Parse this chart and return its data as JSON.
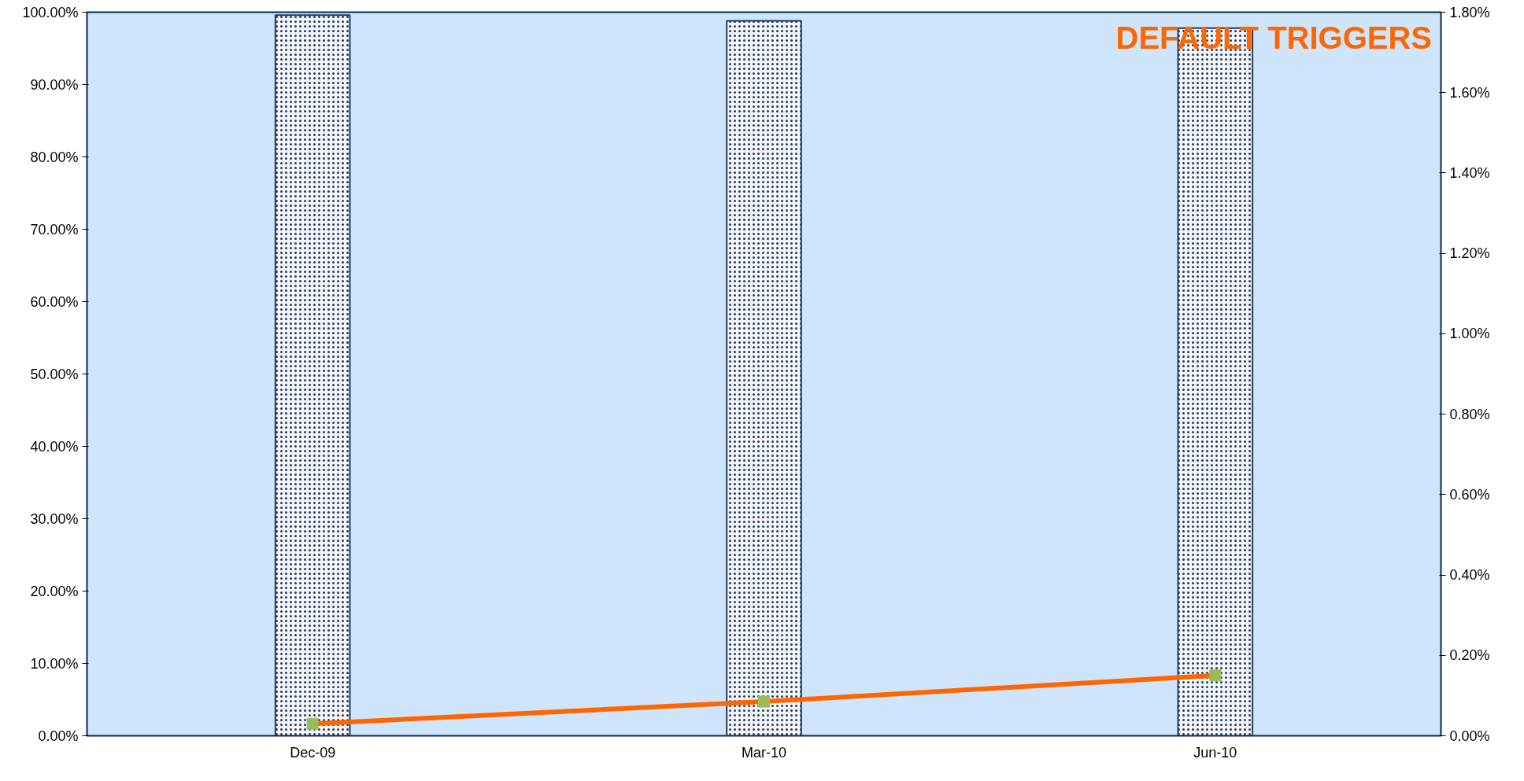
{
  "chart_data": {
    "type": "bar",
    "title": "DEFAULT TRIGGERS",
    "categories": [
      "Dec-09",
      "Mar-10",
      "Jun-10"
    ],
    "series": [
      {
        "color": "#1f3864",
        "values": [
          99.6,
          98.8,
          97.8
        ]
      },
      {
        "type": "line",
        "axis": "y2",
        "color": "#ff6600",
        "marker": "square",
        "values": [
          0.03,
          0.085,
          0.15
        ]
      }
    ],
    "ylim": [
      0,
      100
    ],
    "yticks": [
      {
        "value": 0,
        "label": "0.00%"
      },
      {
        "value": 10,
        "label": "10.00%"
      },
      {
        "value": 20,
        "label": "20.00%"
      },
      {
        "value": 30,
        "label": "30.00%"
      },
      {
        "value": 40,
        "label": "40.00%"
      },
      {
        "value": 50,
        "label": "50.00%"
      },
      {
        "value": 60,
        "label": "60.00%"
      },
      {
        "value": 70,
        "label": "70.00%"
      },
      {
        "value": 80,
        "label": "80.00%"
      },
      {
        "value": 90,
        "label": "90.00%"
      },
      {
        "value": 100,
        "label": "100.00%"
      }
    ],
    "y2lim": [
      0,
      1.8
    ],
    "y2ticks": [
      {
        "value": 0,
        "label": "0.00%"
      },
      {
        "value": 0.2,
        "label": "0.20%"
      },
      {
        "value": 0.4,
        "label": "0.40%"
      },
      {
        "value": 0.6,
        "label": "0.60%"
      },
      {
        "value": 0.8,
        "label": "0.80%"
      },
      {
        "value": 1.0,
        "label": "1.00%"
      },
      {
        "value": 1.2,
        "label": "1.20%"
      },
      {
        "value": 1.4,
        "label": "1.40%"
      },
      {
        "value": 1.6,
        "label": "1.60%"
      },
      {
        "value": 1.8,
        "label": "1.80%"
      }
    ],
    "grid": false
  }
}
